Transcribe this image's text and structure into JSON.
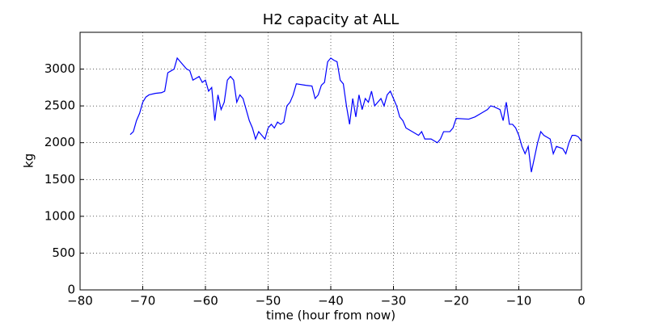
{
  "chart_data": {
    "type": "line",
    "title": "H2 capacity at ALL",
    "xlabel": "time (hour from now)",
    "ylabel": "kg",
    "color": "#0000ff",
    "grid": true,
    "xlim": [
      -80,
      0
    ],
    "ylim": [
      0,
      3500
    ],
    "xticks": [
      {
        "value": -80,
        "label": "−80"
      },
      {
        "value": -70,
        "label": "−70"
      },
      {
        "value": -60,
        "label": "−60"
      },
      {
        "value": -50,
        "label": "−50"
      },
      {
        "value": -40,
        "label": "−40"
      },
      {
        "value": -30,
        "label": "−30"
      },
      {
        "value": -20,
        "label": "−20"
      },
      {
        "value": -10,
        "label": "−10"
      },
      0
    ],
    "yticks": [
      0,
      500,
      1000,
      1500,
      2000,
      2500,
      3000
    ],
    "x": [
      -72,
      -71.5,
      -71,
      -70.5,
      -70,
      -69.5,
      -69,
      -68,
      -67,
      -66.5,
      -66,
      -65,
      -64.5,
      -64,
      -63,
      -62.5,
      -62,
      -61,
      -60.5,
      -60,
      -59.5,
      -59,
      -58.5,
      -58,
      -57.5,
      -57,
      -56.5,
      -56,
      -55.5,
      -55,
      -54.5,
      -54,
      -53.5,
      -53,
      -52.5,
      -52,
      -51.5,
      -51,
      -50.5,
      -50,
      -49.5,
      -49,
      -48.5,
      -48,
      -47.5,
      -47,
      -46.5,
      -46,
      -45.5,
      -44,
      -43,
      -42.5,
      -42,
      -41.5,
      -41,
      -40.5,
      -40,
      -39.5,
      -39,
      -38.5,
      -38,
      -37.5,
      -37,
      -36.5,
      -36,
      -35.5,
      -35,
      -34.5,
      -34,
      -33.5,
      -33,
      -32,
      -31.5,
      -31,
      -30.5,
      -30,
      -29.5,
      -29,
      -28.5,
      -28,
      -27,
      -26,
      -25.5,
      -25,
      -24,
      -23,
      -22.5,
      -22,
      -21,
      -20.5,
      -20,
      -18,
      -17,
      -16,
      -15,
      -14.5,
      -14,
      -13,
      -12.5,
      -12,
      -11.5,
      -11,
      -10.5,
      -10,
      -9.5,
      -9,
      -8.5,
      -8,
      -7.5,
      -7,
      -6.5,
      -6,
      -5,
      -4.5,
      -4,
      -3,
      -2.5,
      -2,
      -1.5,
      -1,
      -0.5,
      0
    ],
    "values": [
      2110,
      2150,
      2300,
      2400,
      2550,
      2620,
      2650,
      2670,
      2680,
      2700,
      2950,
      3000,
      3150,
      3100,
      3000,
      2980,
      2850,
      2900,
      2820,
      2850,
      2700,
      2750,
      2300,
      2650,
      2450,
      2550,
      2850,
      2900,
      2850,
      2550,
      2650,
      2600,
      2450,
      2300,
      2200,
      2050,
      2150,
      2100,
      2050,
      2200,
      2250,
      2200,
      2280,
      2250,
      2280,
      2500,
      2550,
      2650,
      2800,
      2780,
      2770,
      2600,
      2650,
      2780,
      2820,
      3100,
      3150,
      3120,
      3100,
      2850,
      2800,
      2500,
      2250,
      2600,
      2350,
      2650,
      2450,
      2600,
      2550,
      2700,
      2500,
      2600,
      2500,
      2650,
      2700,
      2600,
      2500,
      2350,
      2300,
      2200,
      2150,
      2100,
      2150,
      2050,
      2050,
      2000,
      2050,
      2150,
      2150,
      2200,
      2330,
      2320,
      2350,
      2400,
      2450,
      2500,
      2490,
      2450,
      2300,
      2550,
      2250,
      2250,
      2200,
      2100,
      1950,
      1850,
      1950,
      1600,
      1800,
      2000,
      2150,
      2100,
      2050,
      1850,
      1950,
      1920,
      1850,
      2000,
      2100,
      2100,
      2080,
      2020
    ]
  }
}
